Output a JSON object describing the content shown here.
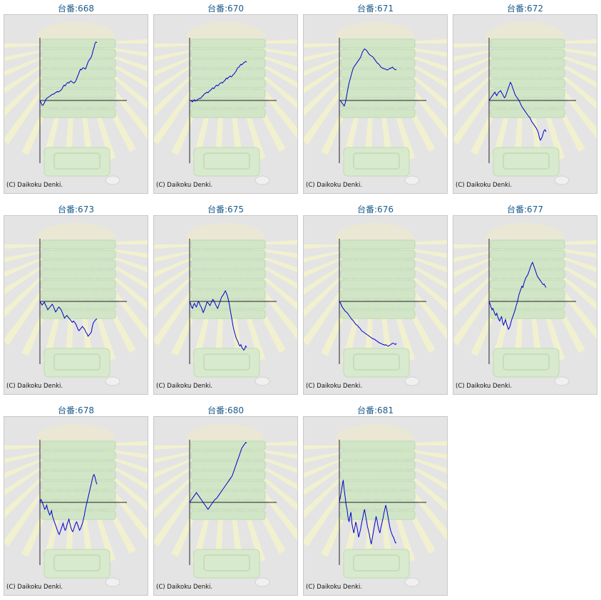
{
  "title_prefix": "台番:",
  "copyright": "(C) Daikoku Denki.",
  "line_color": "#0000cc",
  "chart_data": [
    {
      "type": "line",
      "title": "台番:668",
      "unit": "668",
      "y": [
        0,
        -3,
        -6,
        -7,
        -5,
        -2,
        1,
        3,
        4,
        5,
        6,
        7,
        8,
        9,
        9,
        10,
        11,
        12,
        13,
        12,
        13,
        14,
        15,
        17,
        20,
        22,
        21,
        23,
        25,
        26,
        25,
        27,
        28,
        27,
        26,
        25,
        26,
        28,
        31,
        35,
        38,
        42,
        45,
        44,
        46,
        47,
        46,
        45,
        48,
        52,
        56,
        58,
        60,
        62,
        66,
        72,
        76,
        82,
        84,
        83
      ]
    },
    {
      "type": "line",
      "title": "台番:670",
      "unit": "670",
      "y": [
        0,
        0,
        -1,
        -2,
        0,
        1,
        -1,
        0,
        1,
        2,
        3,
        3,
        4,
        6,
        7,
        9,
        10,
        11,
        12,
        11,
        13,
        14,
        15,
        17,
        18,
        17,
        19,
        21,
        22,
        21,
        22,
        24,
        25,
        26,
        25,
        27,
        28,
        30,
        32,
        31,
        33,
        34,
        35,
        34,
        35,
        37,
        38,
        40,
        42,
        45,
        47,
        48,
        50,
        52,
        51,
        53,
        54,
        55,
        56,
        55
      ]
    },
    {
      "type": "line",
      "title": "台番:671",
      "unit": "671",
      "y": [
        0,
        0,
        -2,
        -4,
        -6,
        -8,
        -4,
        2,
        10,
        18,
        25,
        30,
        35,
        40,
        45,
        48,
        50,
        52,
        54,
        56,
        58,
        60,
        62,
        66,
        70,
        72,
        74,
        73,
        72,
        70,
        68,
        66,
        65,
        64,
        63,
        62,
        60,
        58,
        56,
        54,
        53,
        52,
        50,
        48,
        47,
        46,
        46,
        45,
        45,
        44,
        44,
        45,
        46,
        46,
        47,
        48,
        46,
        45,
        44,
        45
      ]
    },
    {
      "type": "line",
      "title": "台番:672",
      "unit": "672",
      "y": [
        0,
        2,
        4,
        6,
        8,
        10,
        12,
        9,
        7,
        10,
        12,
        13,
        14,
        11,
        9,
        6,
        4,
        6,
        10,
        14,
        18,
        22,
        26,
        24,
        20,
        16,
        12,
        8,
        6,
        4,
        2,
        0,
        -3,
        -6,
        -9,
        -11,
        -13,
        -15,
        -17,
        -19,
        -21,
        -23,
        -24,
        -27,
        -30,
        -32,
        -34,
        -36,
        -38,
        -40,
        -43,
        -47,
        -53,
        -57,
        -55,
        -52,
        -47,
        -43,
        -42,
        -45
      ]
    },
    {
      "type": "line",
      "title": "台番:673",
      "unit": "673",
      "y": [
        0,
        -3,
        -5,
        -3,
        -1,
        -5,
        -8,
        -12,
        -10,
        -8,
        -6,
        -4,
        -7,
        -11,
        -15,
        -13,
        -10,
        -8,
        -10,
        -12,
        -16,
        -20,
        -24,
        -22,
        -20,
        -22,
        -24,
        -26,
        -28,
        -30,
        -28,
        -30,
        -32,
        -36,
        -40,
        -42,
        -40,
        -38,
        -36,
        -38,
        -40,
        -44,
        -46,
        -50,
        -48,
        -46,
        -44,
        -35,
        -30,
        -28,
        -26,
        -25
      ]
    },
    {
      "type": "line",
      "title": "台番:675",
      "unit": "675",
      "y": [
        0,
        -4,
        -8,
        -10,
        -5,
        -3,
        -6,
        -8,
        -4,
        0,
        -2,
        -6,
        -8,
        -12,
        -16,
        -13,
        -9,
        -5,
        -1,
        -2,
        -4,
        -6,
        -3,
        0,
        3,
        1,
        -2,
        -5,
        -8,
        -10,
        -6,
        -2,
        2,
        6,
        8,
        10,
        13,
        15,
        12,
        8,
        3,
        -4,
        -12,
        -20,
        -28,
        -36,
        -42,
        -47,
        -52,
        -55,
        -58,
        -62,
        -64,
        -62,
        -66,
        -68,
        -70,
        -68,
        -64,
        -66
      ]
    },
    {
      "type": "line",
      "title": "台番:676",
      "unit": "676",
      "y": [
        0,
        -2,
        -5,
        -8,
        -10,
        -12,
        -14,
        -15,
        -16,
        -18,
        -20,
        -22,
        -24,
        -26,
        -27,
        -29,
        -31,
        -33,
        -34,
        -35,
        -37,
        -38,
        -40,
        -42,
        -43,
        -44,
        -45,
        -46,
        -47,
        -48,
        -49,
        -50,
        -51,
        -52,
        -53,
        -54,
        -54,
        -55,
        -56,
        -57,
        -58,
        -59,
        -60,
        -60,
        -61,
        -62,
        -62,
        -63,
        -62,
        -63,
        -64,
        -64,
        -63,
        -62,
        -61,
        -60,
        -60,
        -61,
        -62,
        -60
      ]
    },
    {
      "type": "line",
      "title": "台番:677",
      "unit": "677",
      "y": [
        0,
        -4,
        -8,
        -12,
        -10,
        -14,
        -18,
        -20,
        -17,
        -22,
        -26,
        -28,
        -24,
        -22,
        -30,
        -34,
        -30,
        -26,
        -32,
        -36,
        -40,
        -38,
        -34,
        -28,
        -24,
        -20,
        -16,
        -12,
        -6,
        -2,
        4,
        10,
        14,
        18,
        22,
        20,
        26,
        30,
        34,
        36,
        38,
        42,
        46,
        50,
        54,
        56,
        52,
        48,
        44,
        40,
        36,
        34,
        32,
        30,
        28,
        26,
        24,
        25,
        22,
        20
      ]
    },
    {
      "type": "line",
      "title": "台番:678",
      "unit": "678",
      "y": [
        0,
        4,
        2,
        -2,
        -6,
        -10,
        -8,
        -4,
        -10,
        -14,
        -18,
        -16,
        -12,
        -20,
        -24,
        -28,
        -32,
        -36,
        -40,
        -44,
        -46,
        -42,
        -38,
        -34,
        -30,
        -36,
        -40,
        -38,
        -32,
        -28,
        -24,
        -30,
        -36,
        -40,
        -42,
        -38,
        -34,
        -30,
        -28,
        -32,
        -36,
        -40,
        -38,
        -34,
        -30,
        -24,
        -18,
        -10,
        -4,
        2,
        8,
        14,
        20,
        26,
        32,
        38,
        40,
        36,
        30,
        26
      ]
    },
    {
      "type": "line",
      "title": "台番:680",
      "unit": "680",
      "y": [
        0,
        2,
        4,
        6,
        8,
        10,
        12,
        14,
        12,
        10,
        8,
        6,
        4,
        2,
        0,
        -2,
        -4,
        -6,
        -8,
        -10,
        -8,
        -6,
        -4,
        -2,
        0,
        2,
        4,
        5,
        6,
        8,
        10,
        12,
        14,
        16,
        18,
        20,
        22,
        24,
        26,
        28,
        30,
        32,
        34,
        36,
        38,
        42,
        46,
        50,
        54,
        58,
        62,
        66,
        70,
        74,
        78,
        80,
        82,
        84,
        86,
        85
      ]
    },
    {
      "type": "line",
      "title": "台番:681",
      "unit": "681",
      "y": [
        0,
        8,
        16,
        24,
        32,
        18,
        8,
        -4,
        -10,
        -22,
        -28,
        -20,
        -14,
        -30,
        -38,
        -44,
        -36,
        -28,
        -34,
        -42,
        -50,
        -44,
        -38,
        -30,
        -24,
        -16,
        -10,
        -18,
        -26,
        -34,
        -40,
        -46,
        -54,
        -60,
        -52,
        -44,
        -36,
        -28,
        -20,
        -26,
        -34,
        -40,
        -44,
        -36,
        -30,
        -24,
        -16,
        -10,
        -4,
        -10,
        -18,
        -26,
        -34,
        -40,
        -44,
        -48,
        -50,
        -54,
        -58,
        -58
      ]
    }
  ]
}
